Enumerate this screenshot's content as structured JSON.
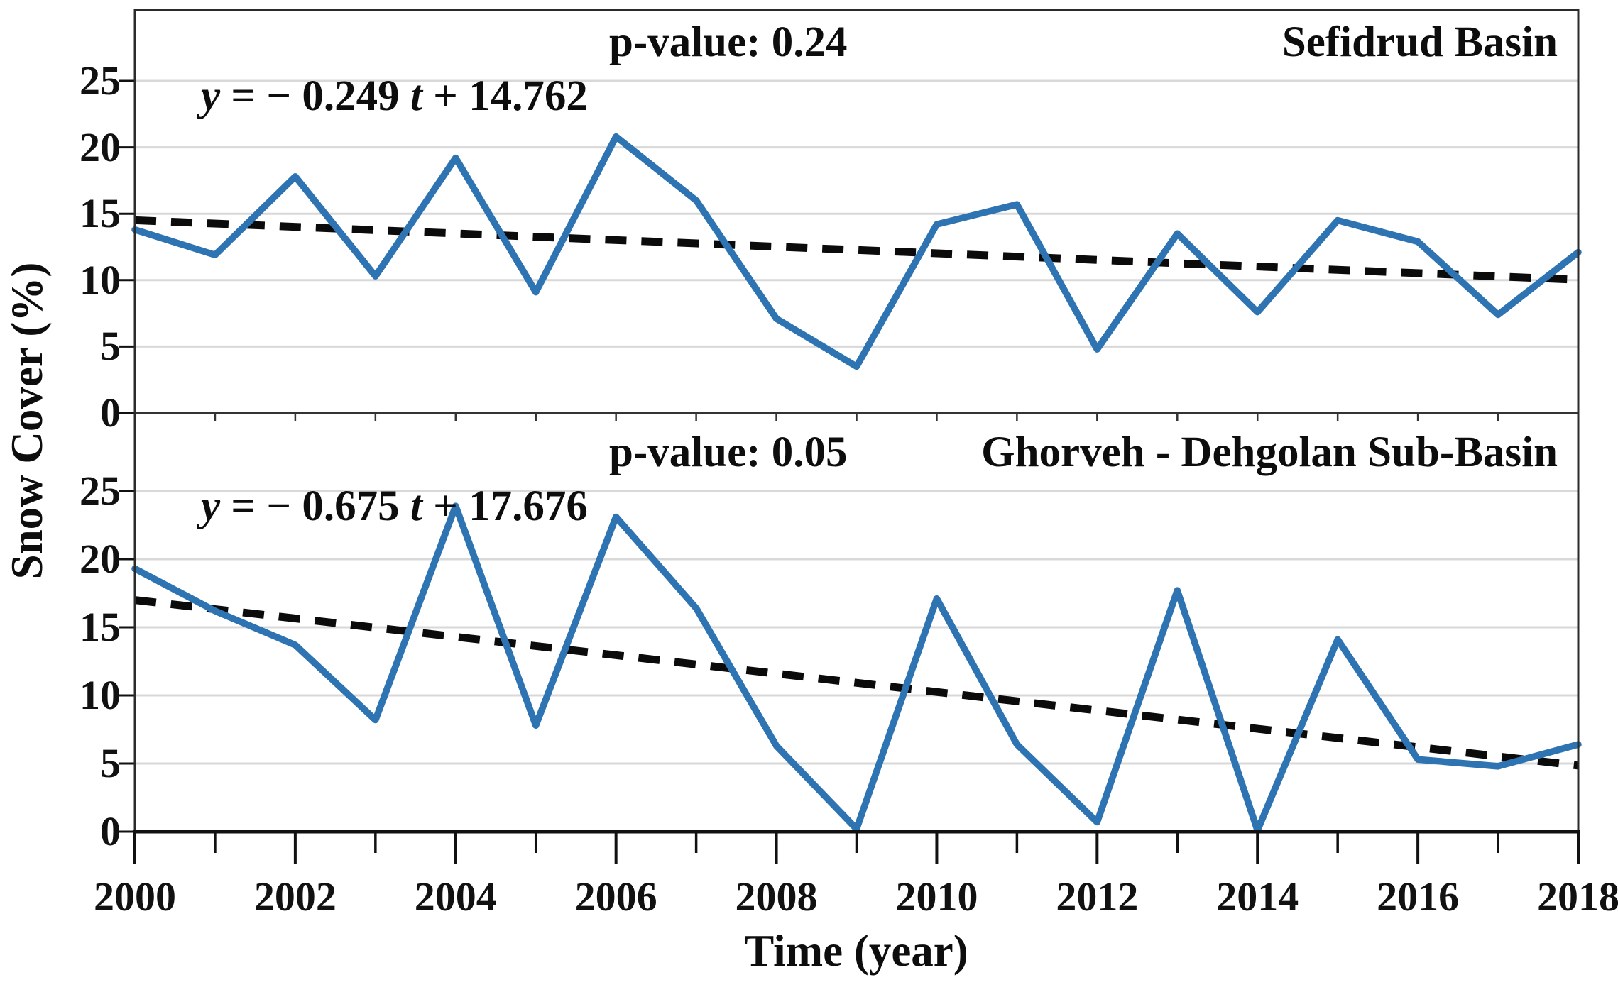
{
  "figure": {
    "y_axis_title": "Snow Cover (%)",
    "x_axis_title": "Time (year)"
  },
  "colors": {
    "line": "#2E73B2",
    "trend": "#0b0b0b",
    "grid": "#d8d8d8",
    "border": "#2b2b2b",
    "axis": "#111111"
  },
  "x_axis": {
    "ticks_major": [
      2000,
      2002,
      2004,
      2006,
      2008,
      2010,
      2012,
      2014,
      2016,
      2018
    ],
    "ticks_minor": [
      2001,
      2003,
      2005,
      2007,
      2009,
      2011,
      2013,
      2015,
      2017
    ],
    "range": [
      2000,
      2018
    ]
  },
  "chart_data": [
    {
      "type": "line",
      "title": "Sefidrud Basin",
      "equation": {
        "y_sym": "y",
        "mid": " = − 0.249 ",
        "t_sym": "t",
        "tail": " + 14.762"
      },
      "p_value_label": "p-value: 0.24",
      "xlabel": "Time (year)",
      "ylabel": "Snow Cover (%)",
      "x": [
        2000,
        2001,
        2002,
        2003,
        2004,
        2005,
        2006,
        2007,
        2008,
        2009,
        2010,
        2011,
        2012,
        2013,
        2014,
        2015,
        2016,
        2017,
        2018
      ],
      "values": [
        13.8,
        11.9,
        17.8,
        10.3,
        19.2,
        9.1,
        20.8,
        16.0,
        7.1,
        3.5,
        14.2,
        15.7,
        4.8,
        13.5,
        7.6,
        14.5,
        12.9,
        7.4,
        12.1
      ],
      "trend": {
        "slope": -0.249,
        "intercept": 14.762,
        "start_value": 14.51,
        "end_value": 10.03,
        "style": "dashed"
      },
      "ylim": [
        0,
        30.4
      ],
      "yticks": [
        0,
        5,
        10,
        15,
        20,
        25
      ],
      "grid": true,
      "legend": "none"
    },
    {
      "type": "line",
      "title": "Ghorveh - Dehgolan Sub-Basin",
      "equation": {
        "y_sym": "y",
        "mid": " = − 0.675 ",
        "t_sym": "t",
        "tail": " + 17.676"
      },
      "p_value_label": "p-value: 0.05",
      "xlabel": "Time (year)",
      "ylabel": "Snow Cover (%)",
      "x": [
        2000,
        2001,
        2002,
        2003,
        2004,
        2005,
        2006,
        2007,
        2008,
        2009,
        2010,
        2011,
        2012,
        2013,
        2014,
        2015,
        2016,
        2017,
        2018
      ],
      "values": [
        19.3,
        16.2,
        13.7,
        8.2,
        23.9,
        7.8,
        23.1,
        16.4,
        6.3,
        0.2,
        17.1,
        6.4,
        0.7,
        17.7,
        0.1,
        14.1,
        5.3,
        4.8,
        6.4
      ],
      "trend": {
        "slope": -0.675,
        "intercept": 17.676,
        "start_value": 17.0,
        "end_value": 4.85,
        "style": "dashed"
      },
      "ylim": [
        0,
        30.7
      ],
      "yticks": [
        0,
        5,
        10,
        15,
        20,
        25
      ],
      "grid": true,
      "legend": "none"
    }
  ]
}
